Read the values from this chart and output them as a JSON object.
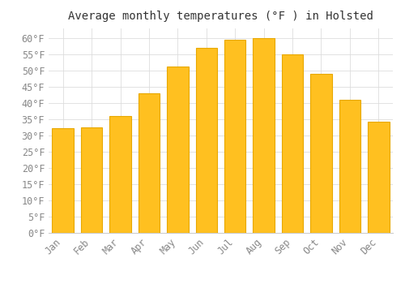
{
  "title": "Average monthly temperatures (°F ) in Holsted",
  "months": [
    "Jan",
    "Feb",
    "Mar",
    "Apr",
    "May",
    "Jun",
    "Jul",
    "Aug",
    "Sep",
    "Oct",
    "Nov",
    "Dec"
  ],
  "temperatures": [
    32.2,
    32.5,
    36.0,
    43.0,
    51.2,
    57.0,
    59.5,
    60.0,
    55.0,
    49.0,
    41.0,
    34.2
  ],
  "bar_color": "#FFC020",
  "bar_edge_color": "#E8A800",
  "background_color": "#FFFFFF",
  "grid_color": "#DDDDDD",
  "ylim": [
    0,
    63
  ],
  "yticks": [
    0,
    5,
    10,
    15,
    20,
    25,
    30,
    35,
    40,
    45,
    50,
    55,
    60
  ],
  "title_fontsize": 10,
  "tick_fontsize": 8.5,
  "tick_color": "#888888",
  "title_color": "#333333",
  "font_family": "monospace",
  "bar_width": 0.75
}
